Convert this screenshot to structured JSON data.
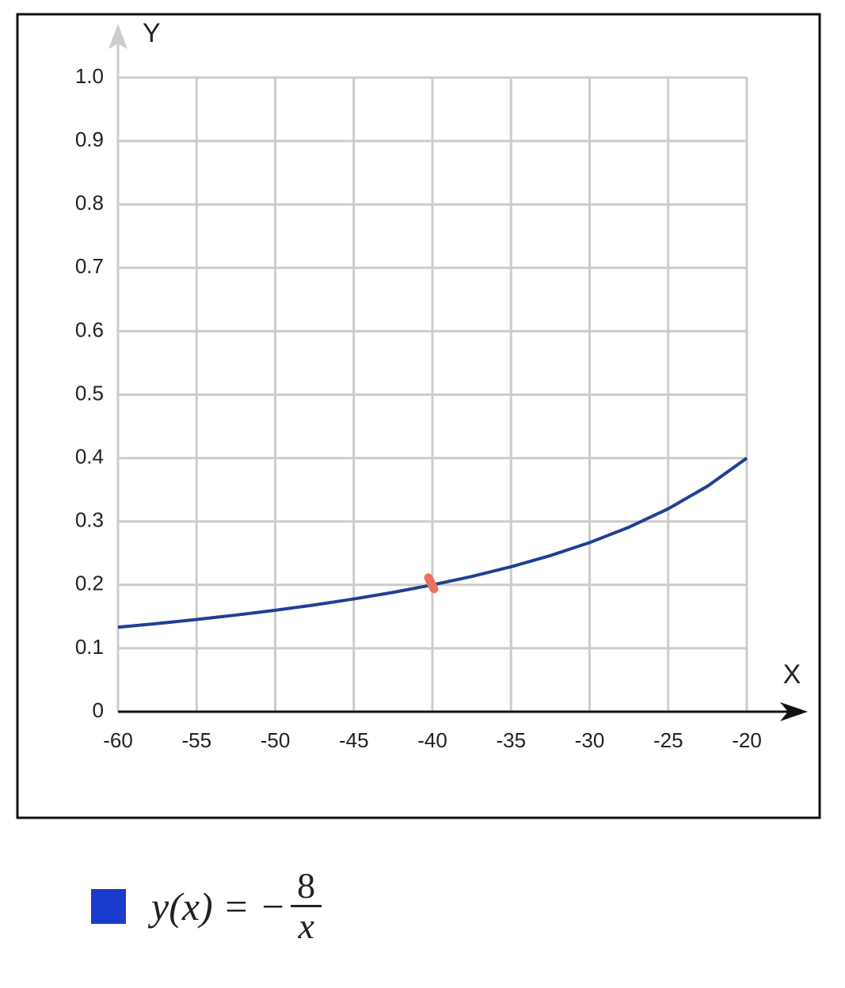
{
  "chart_data": {
    "type": "line",
    "x_label": "X",
    "y_label": "Y",
    "x": [
      -60,
      -57.5,
      -55,
      -52.5,
      -50,
      -47.5,
      -45,
      -42.5,
      -40,
      -37.5,
      -35,
      -32.5,
      -30,
      -27.5,
      -25,
      -22.5,
      -20
    ],
    "series": [
      {
        "color": "#203f95",
        "values": [
          0.1333,
          0.1391,
          0.1455,
          0.1524,
          0.16,
          0.1684,
          0.1778,
          0.1882,
          0.2,
          0.2133,
          0.2286,
          0.2462,
          0.2667,
          0.2909,
          0.32,
          0.3556,
          0.4
        ]
      }
    ],
    "highlight": {
      "x": -40,
      "y": 0.2,
      "color": "#f07060"
    },
    "xlim": [
      -60,
      -20
    ],
    "ylim": [
      0,
      1
    ],
    "xticks": [
      -60,
      -55,
      -50,
      -45,
      -40,
      -35,
      -30,
      -25,
      -20
    ],
    "yticks": [
      0,
      0.1,
      0.2,
      0.3,
      0.4,
      0.5,
      0.6,
      0.7,
      0.8,
      0.9,
      {
        "value": 1,
        "label": "1.0"
      }
    ],
    "grid": true,
    "legend": [
      {
        "color": "#1a3ccc",
        "lhs": "y(x) = −",
        "numerator": "8",
        "denominator": "x"
      }
    ]
  }
}
